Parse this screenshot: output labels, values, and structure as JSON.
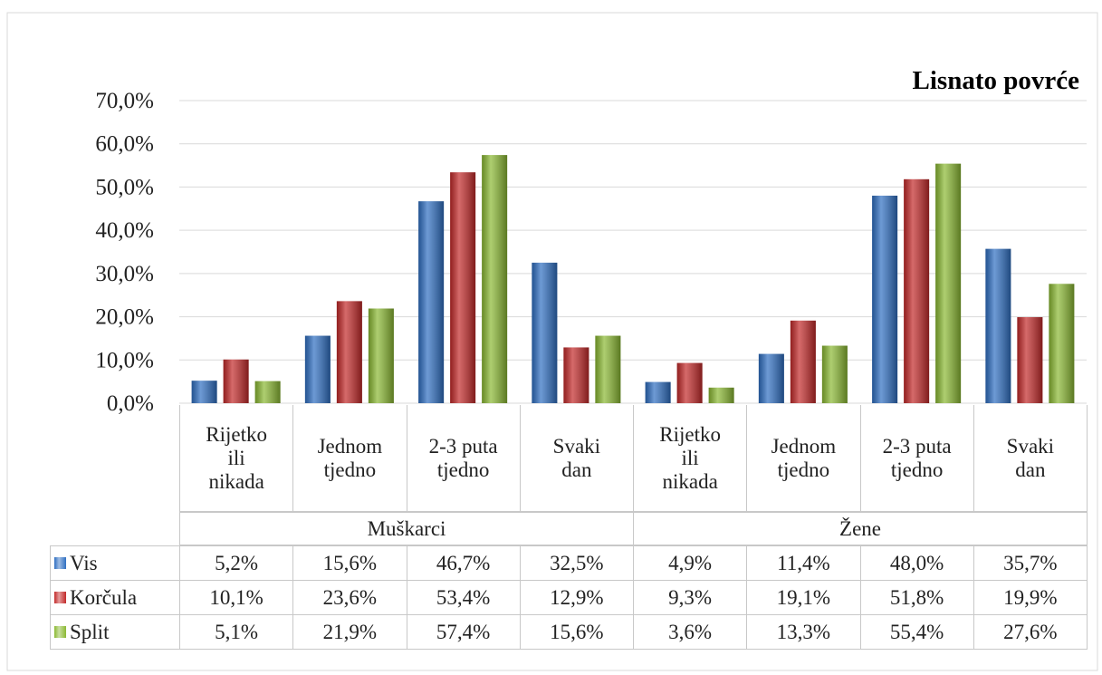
{
  "chart_data": {
    "type": "bar",
    "title": "Lisnato povrće",
    "categories": [
      "Rijetko ili nikada",
      "Jednom tjedno",
      "2-3 puta tjedno",
      "Svaki dan",
      "Rijetko ili nikada",
      "Jednom tjedno",
      "2-3 puta tjedno",
      "Svaki dan"
    ],
    "category_groups": [
      "Muškarci",
      "Žene"
    ],
    "series": [
      {
        "name": "Vis",
        "color": "#2f6fc2",
        "values": [
          5.2,
          15.6,
          46.7,
          32.5,
          4.9,
          11.4,
          48.0,
          35.7
        ],
        "value_labels": [
          "5,2%",
          "15,6%",
          "46,7%",
          "32,5%",
          "4,9%",
          "11,4%",
          "48,0%",
          "35,7%"
        ]
      },
      {
        "name": "Korčula",
        "color": "#c32a2a",
        "values": [
          10.1,
          23.6,
          53.4,
          12.9,
          9.3,
          19.1,
          51.8,
          19.9
        ],
        "value_labels": [
          "10,1%",
          "23,6%",
          "53,4%",
          "12,9%",
          "9,3%",
          "19,1%",
          "51,8%",
          "19,9%"
        ]
      },
      {
        "name": "Split",
        "color": "#8bb933",
        "values": [
          5.1,
          21.9,
          57.4,
          15.6,
          3.6,
          13.3,
          55.4,
          27.6
        ],
        "value_labels": [
          "5,1%",
          "21,9%",
          "57,4%",
          "15,6%",
          "3,6%",
          "13,3%",
          "55,4%",
          "27,6%"
        ]
      }
    ],
    "ylim": [
      0,
      70
    ],
    "yticks": [
      {
        "value": 0,
        "label": "0,0%"
      },
      {
        "value": 10,
        "label": "10,0%"
      },
      {
        "value": 20,
        "label": "20,0%"
      },
      {
        "value": 30,
        "label": "30,0%"
      },
      {
        "value": 40,
        "label": "40,0%"
      },
      {
        "value": 50,
        "label": "50,0%"
      },
      {
        "value": 60,
        "label": "60,0%"
      },
      {
        "value": 70,
        "label": "70,0%"
      }
    ],
    "grid": true
  }
}
